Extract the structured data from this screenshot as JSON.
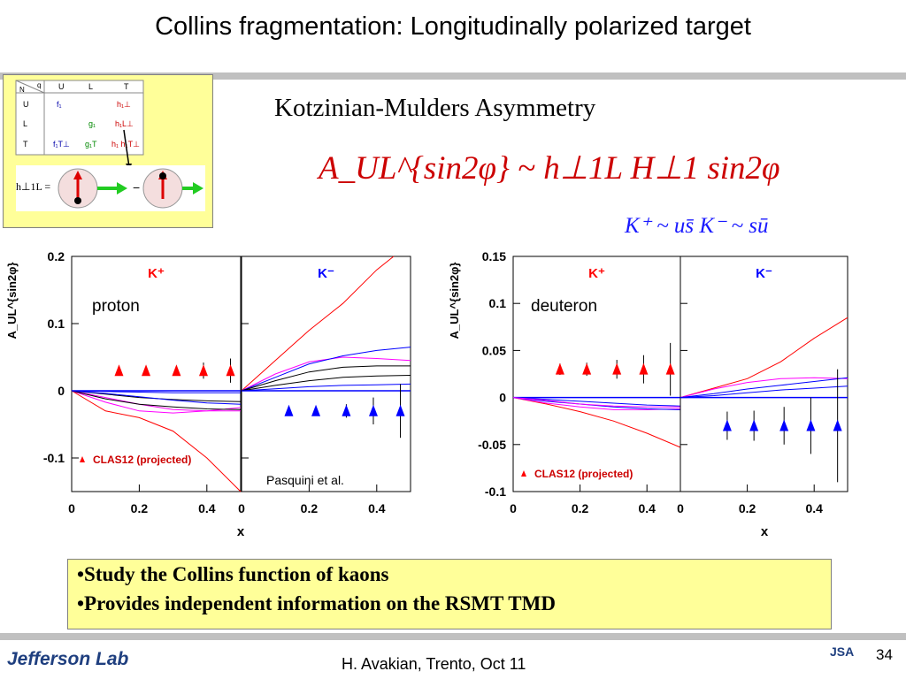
{
  "slide": {
    "title": "Collins fragmentation: Longitudinally polarized target",
    "subtitle": "Kotzinian-Mulders Asymmetry",
    "formula": "A_UL^{sin2φ} ~ h⊥1L H⊥1 sin2φ",
    "kaon_relations": "K⁺ ~ us̄    K⁻ ~ sū",
    "bullets": [
      "•Study the Collins function  of kaons",
      "•Provides independent information on the RSMT TMD"
    ],
    "footer": "H. Avakian, Trento, Oct 11",
    "page_number": "34",
    "logo_text": "Jefferson Lab",
    "jsa_logo_text": "JSA"
  },
  "inset": {
    "col_headers": [
      "U",
      "L",
      "T"
    ],
    "row_headers": [
      "U",
      "L",
      "T"
    ],
    "cells": [
      [
        "f₁",
        "",
        "h₁⊥"
      ],
      [
        "",
        "g₁",
        "h₁L⊥"
      ],
      [
        "f₁T⊥",
        "g₁T",
        "h₁ h₁T⊥"
      ]
    ],
    "corner_q": "q",
    "corner_n": "N",
    "eq_label": "h⊥1L =",
    "minus": "−"
  },
  "colors": {
    "kplus": "#ff0000",
    "kminus": "#0000ff",
    "accent": "#ffff99"
  },
  "chart_data": [
    {
      "type": "scatter",
      "target": "proton",
      "ylabel": "A_UL^{sin2φ}",
      "xlabel": "x",
      "ylim": [
        -0.15,
        0.2
      ],
      "yticks": [
        -0.1,
        0,
        0.1,
        0.2
      ],
      "xlim": [
        0,
        0.5
      ],
      "xticks": [
        0,
        0.2,
        0.4
      ],
      "legend": "CLAS12 (projected)",
      "annotation": "Pasquini et al.",
      "panels": [
        {
          "label": "K⁺",
          "points": {
            "x": [
              0.14,
              0.22,
              0.31,
              0.39,
              0.47
            ],
            "y": [
              0.03,
              0.03,
              0.03,
              0.03,
              0.03
            ],
            "err": [
              0.003,
              0.004,
              0.007,
              0.012,
              0.018
            ]
          },
          "curves": [
            {
              "color": "#ff0000",
              "x": [
                0,
                0.1,
                0.2,
                0.3,
                0.4,
                0.5
              ],
              "y": [
                0,
                -0.03,
                -0.04,
                -0.06,
                -0.1,
                -0.15
              ]
            },
            {
              "color": "#ff00ff",
              "x": [
                0,
                0.1,
                0.2,
                0.3,
                0.4,
                0.5
              ],
              "y": [
                0,
                -0.017,
                -0.03,
                -0.033,
                -0.03,
                -0.025
              ]
            },
            {
              "color": "#ff00ff",
              "x": [
                0,
                0.1,
                0.2,
                0.3,
                0.4,
                0.5
              ],
              "y": [
                0,
                -0.01,
                -0.02,
                -0.028,
                -0.03,
                -0.03
              ]
            },
            {
              "color": "#000000",
              "x": [
                0,
                0.1,
                0.2,
                0.3,
                0.4,
                0.5
              ],
              "y": [
                0,
                -0.012,
                -0.02,
                -0.024,
                -0.027,
                -0.028
              ]
            },
            {
              "color": "#000000",
              "x": [
                0,
                0.1,
                0.2,
                0.3,
                0.4,
                0.5
              ],
              "y": [
                0,
                -0.005,
                -0.01,
                -0.013,
                -0.015,
                -0.016
              ]
            },
            {
              "color": "#0000ff",
              "x": [
                0,
                0.1,
                0.2,
                0.3,
                0.4,
                0.5
              ],
              "y": [
                0,
                -0.004,
                -0.009,
                -0.014,
                -0.018,
                -0.02
              ]
            },
            {
              "color": "#0000ff",
              "x": [
                0,
                0.1,
                0.2,
                0.3,
                0.4,
                0.5
              ],
              "y": [
                0,
                -0.001,
                -0.002,
                -0.003,
                -0.003,
                -0.003
              ]
            }
          ]
        },
        {
          "label": "K⁻",
          "points": {
            "x": [
              0.14,
              0.22,
              0.31,
              0.39,
              0.47
            ],
            "y": [
              -0.03,
              -0.03,
              -0.03,
              -0.03,
              -0.03
            ],
            "err": [
              0.006,
              0.007,
              0.01,
              0.02,
              0.04
            ]
          },
          "curves": [
            {
              "color": "#ff0000",
              "x": [
                0,
                0.1,
                0.2,
                0.3,
                0.4,
                0.45
              ],
              "y": [
                0,
                0.045,
                0.09,
                0.13,
                0.18,
                0.2
              ]
            },
            {
              "color": "#ff00ff",
              "x": [
                0,
                0.1,
                0.2,
                0.3,
                0.4,
                0.5
              ],
              "y": [
                0,
                0.025,
                0.043,
                0.05,
                0.048,
                0.045
              ]
            },
            {
              "color": "#0000ff",
              "x": [
                0,
                0.1,
                0.2,
                0.3,
                0.4,
                0.5
              ],
              "y": [
                0,
                0.02,
                0.04,
                0.052,
                0.06,
                0.065
              ]
            },
            {
              "color": "#000000",
              "x": [
                0,
                0.1,
                0.2,
                0.3,
                0.4,
                0.5
              ],
              "y": [
                0,
                0.015,
                0.028,
                0.035,
                0.037,
                0.037
              ]
            },
            {
              "color": "#000000",
              "x": [
                0,
                0.1,
                0.2,
                0.3,
                0.4,
                0.5
              ],
              "y": [
                0,
                0.008,
                0.015,
                0.02,
                0.022,
                0.023
              ]
            },
            {
              "color": "#0000ff",
              "x": [
                0,
                0.1,
                0.2,
                0.3,
                0.4,
                0.5
              ],
              "y": [
                0,
                0.003,
                0.006,
                0.008,
                0.009,
                0.01
              ]
            }
          ]
        }
      ]
    },
    {
      "type": "scatter",
      "target": "deuteron",
      "ylabel": "A_UL^{sin2φ}",
      "xlabel": "x",
      "ylim": [
        -0.1,
        0.15
      ],
      "yticks": [
        -0.1,
        -0.05,
        0,
        0.05,
        0.1,
        0.15
      ],
      "xlim": [
        0,
        0.5
      ],
      "xticks": [
        0,
        0.2,
        0.4
      ],
      "legend": "CLAS12 (projected)",
      "panels": [
        {
          "label": "K⁺",
          "points": {
            "x": [
              0.14,
              0.22,
              0.31,
              0.39,
              0.47
            ],
            "y": [
              0.03,
              0.03,
              0.03,
              0.03,
              0.03
            ],
            "err": [
              0.006,
              0.007,
              0.01,
              0.015,
              0.028
            ]
          },
          "curves": [
            {
              "color": "#ff0000",
              "x": [
                0,
                0.1,
                0.2,
                0.3,
                0.4,
                0.5
              ],
              "y": [
                0,
                -0.007,
                -0.015,
                -0.025,
                -0.038,
                -0.053
              ]
            },
            {
              "color": "#ff00ff",
              "x": [
                0,
                0.1,
                0.2,
                0.3,
                0.4,
                0.5
              ],
              "y": [
                0,
                -0.006,
                -0.01,
                -0.013,
                -0.013,
                -0.012
              ]
            },
            {
              "color": "#0000ff",
              "x": [
                0,
                0.1,
                0.2,
                0.3,
                0.4,
                0.5
              ],
              "y": [
                0,
                -0.004,
                -0.007,
                -0.01,
                -0.012,
                -0.013
              ]
            },
            {
              "color": "#0000ff",
              "x": [
                0,
                0.1,
                0.2,
                0.3,
                0.4,
                0.5
              ],
              "y": [
                0,
                -0.002,
                -0.004,
                -0.006,
                -0.008,
                -0.009
              ]
            },
            {
              "color": "#ff00ff",
              "x": [
                0,
                0.1,
                0.2,
                0.3,
                0.4,
                0.5
              ],
              "y": [
                0,
                -0.003,
                -0.007,
                -0.009,
                -0.01,
                -0.01
              ]
            }
          ]
        },
        {
          "label": "K⁻",
          "points": {
            "x": [
              0.14,
              0.22,
              0.31,
              0.39,
              0.47
            ],
            "y": [
              -0.03,
              -0.03,
              -0.03,
              -0.03,
              -0.03
            ],
            "err": [
              0.015,
              0.016,
              0.02,
              0.03,
              0.06
            ]
          },
          "curves": [
            {
              "color": "#ff0000",
              "x": [
                0,
                0.1,
                0.2,
                0.3,
                0.4,
                0.5
              ],
              "y": [
                0,
                0.01,
                0.02,
                0.038,
                0.063,
                0.085
              ]
            },
            {
              "color": "#ff00ff",
              "x": [
                0,
                0.1,
                0.2,
                0.3,
                0.4,
                0.5
              ],
              "y": [
                0,
                0.009,
                0.016,
                0.02,
                0.021,
                0.02
              ]
            },
            {
              "color": "#0000ff",
              "x": [
                0,
                0.1,
                0.2,
                0.3,
                0.4,
                0.5
              ],
              "y": [
                0,
                0.004,
                0.009,
                0.013,
                0.017,
                0.021
              ]
            },
            {
              "color": "#0000ff",
              "x": [
                0,
                0.1,
                0.2,
                0.3,
                0.4,
                0.5
              ],
              "y": [
                0,
                0.002,
                0.005,
                0.008,
                0.01,
                0.012
              ]
            }
          ]
        }
      ]
    }
  ]
}
